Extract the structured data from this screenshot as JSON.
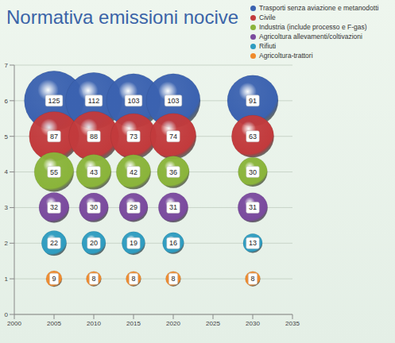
{
  "chart_data": {
    "type": "bubble",
    "title": "Normativa emissioni nocive",
    "xlim": [
      2000,
      2035
    ],
    "xticks": [
      2000,
      2005,
      2010,
      2015,
      2020,
      2025,
      2030,
      2035
    ],
    "ylim": [
      0,
      7
    ],
    "yticks": [
      0,
      1,
      2,
      3,
      4,
      5,
      6,
      7
    ],
    "grid": true,
    "legend": "top-right",
    "data_labels": true,
    "series": [
      {
        "name": "Trasporti senza aviazione e metanodotti",
        "color": "#3b62b0",
        "x": [
          2005,
          2010,
          2015,
          2020,
          2030
        ],
        "y": [
          6,
          6,
          6,
          6,
          6
        ],
        "size": [
          125,
          112,
          103,
          103,
          91
        ]
      },
      {
        "name": "Civile",
        "color": "#c23a3c",
        "x": [
          2005,
          2010,
          2015,
          2020,
          2030
        ],
        "y": [
          5,
          5,
          5,
          5,
          5
        ],
        "size": [
          87,
          88,
          73,
          74,
          63
        ]
      },
      {
        "name": "Industria (include processo e F-gas)",
        "color": "#8ab43a",
        "x": [
          2005,
          2010,
          2015,
          2020,
          2030
        ],
        "y": [
          4,
          4,
          4,
          4,
          4
        ],
        "size": [
          55,
          43,
          42,
          36,
          30
        ]
      },
      {
        "name": "Agricoltura allevamenti/coltivazioni",
        "color": "#7a4a9e",
        "x": [
          2005,
          2010,
          2015,
          2020,
          2030
        ],
        "y": [
          3,
          3,
          3,
          3,
          3
        ],
        "size": [
          32,
          30,
          29,
          31,
          31
        ]
      },
      {
        "name": "Rifiuti",
        "color": "#2e9cc0",
        "x": [
          2005,
          2010,
          2015,
          2020,
          2030
        ],
        "y": [
          2,
          2,
          2,
          2,
          2
        ],
        "size": [
          22,
          20,
          19,
          16,
          13
        ]
      },
      {
        "name": "Agricoltura-trattori",
        "color": "#ef8a2c",
        "x": [
          2005,
          2010,
          2015,
          2020,
          2030
        ],
        "y": [
          1,
          1,
          1,
          1,
          1
        ],
        "size": [
          9,
          8,
          8,
          8,
          8
        ]
      }
    ]
  }
}
